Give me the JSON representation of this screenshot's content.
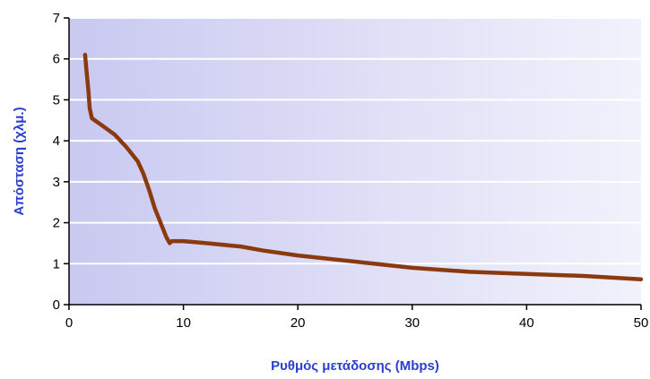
{
  "chart_data": {
    "type": "line",
    "title": "",
    "xlabel": "Ρυθμός μετάδοσης (Mbps)",
    "ylabel": "Απόσταση (χλμ.)",
    "xlim": [
      0,
      50
    ],
    "ylim": [
      0,
      7
    ],
    "x_ticks": [
      "0",
      "10",
      "20",
      "30",
      "40",
      "50"
    ],
    "y_ticks": [
      "0",
      "1",
      "2",
      "3",
      "4",
      "5",
      "6",
      "7"
    ],
    "grid": "horizontal",
    "legend": "none",
    "series": [
      {
        "x": [
          1.4,
          1.5,
          1.6,
          1.7,
          1.8,
          2.0,
          3.0,
          4.0,
          5.0,
          6.0,
          6.5,
          7.0,
          7.5,
          8.0,
          8.5,
          8.8,
          9.0,
          10,
          12,
          15,
          17,
          20,
          25,
          30,
          35,
          40,
          45,
          50
        ],
        "y": [
          6.1,
          5.8,
          5.5,
          5.2,
          4.8,
          4.55,
          4.35,
          4.15,
          3.85,
          3.5,
          3.2,
          2.8,
          2.35,
          2.0,
          1.65,
          1.5,
          1.55,
          1.55,
          1.5,
          1.42,
          1.32,
          1.2,
          1.05,
          0.9,
          0.8,
          0.75,
          0.7,
          0.62
        ]
      }
    ],
    "colors": {
      "line": "#8b3a10",
      "axis_title": "#2a3fcf",
      "plot_bg_left": "#c9c9f1",
      "plot_bg_right": "#f2f2fc",
      "grid": "#ffffff",
      "axis": "#000000"
    }
  }
}
